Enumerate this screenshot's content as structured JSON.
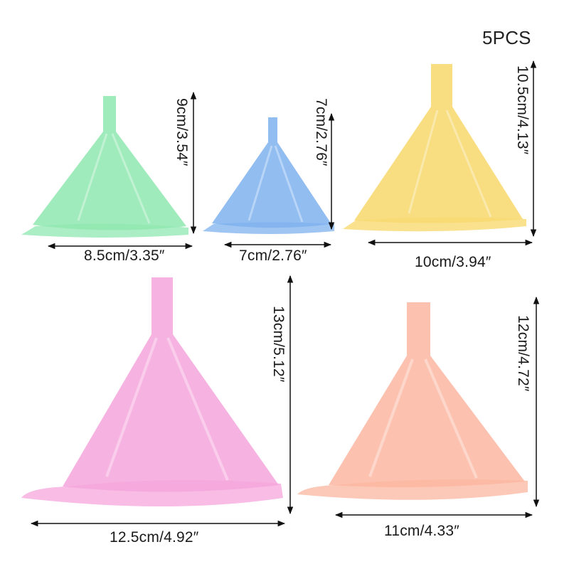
{
  "pack_count": "5PCS",
  "funnels": [
    {
      "name": "green",
      "color": "#8fe7b0",
      "width": "8.5cm/3.35″",
      "height": "9cm/3.54″"
    },
    {
      "name": "blue",
      "color": "#7fb2ee",
      "width": "7cm/2.76″",
      "height": "7cm/2.76″"
    },
    {
      "name": "yellow",
      "color": "#f7da72",
      "width": "10cm/3.94″",
      "height": "10.5cm/4.13″"
    },
    {
      "name": "pink",
      "color": "#f5a6dc",
      "width": "12.5cm/4.92″",
      "height": "13cm/5.12″"
    },
    {
      "name": "peach",
      "color": "#fbb7a1",
      "width": "11cm/4.33″",
      "height": "12cm/4.72″"
    }
  ]
}
